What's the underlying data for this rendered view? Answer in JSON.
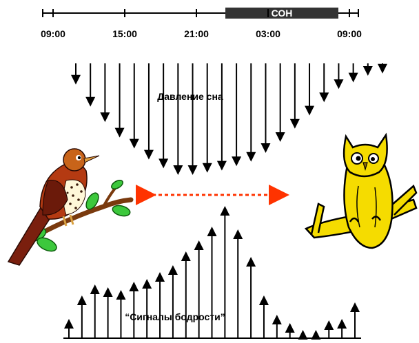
{
  "timeline": {
    "ticks": [
      "09:00",
      "15:00",
      "21:00",
      "03:00",
      "09:00"
    ],
    "sleep_label": "СОН"
  },
  "sleep_pressure": {
    "caption": "Давление сна",
    "arrow_levels": [
      0.18,
      0.38,
      0.52,
      0.66,
      0.76,
      0.86,
      0.94,
      1.0,
      1.0,
      0.98,
      0.96,
      0.92,
      0.88,
      0.8,
      0.7,
      0.58,
      0.46,
      0.34,
      0.22,
      0.16,
      0.1,
      0.08
    ]
  },
  "wake_signals": {
    "caption": "“Сигналы бодрости”",
    "arrow_levels": [
      0.13,
      0.3,
      0.38,
      0.36,
      0.34,
      0.4,
      0.42,
      0.47,
      0.52,
      0.62,
      0.7,
      0.8,
      0.95,
      0.78,
      0.58,
      0.3,
      0.16,
      0.1,
      0.05,
      0.05,
      0.12,
      0.13,
      0.25
    ]
  },
  "colors": {
    "dashed_arrow": "#ff3300",
    "owl": "#f5dc00",
    "bird": "#7a1f0e",
    "leaf": "#3cc83c",
    "sleep_bar": "#333333"
  },
  "icons": {
    "bird": "thrush-bird-icon",
    "owl": "owl-icon"
  }
}
